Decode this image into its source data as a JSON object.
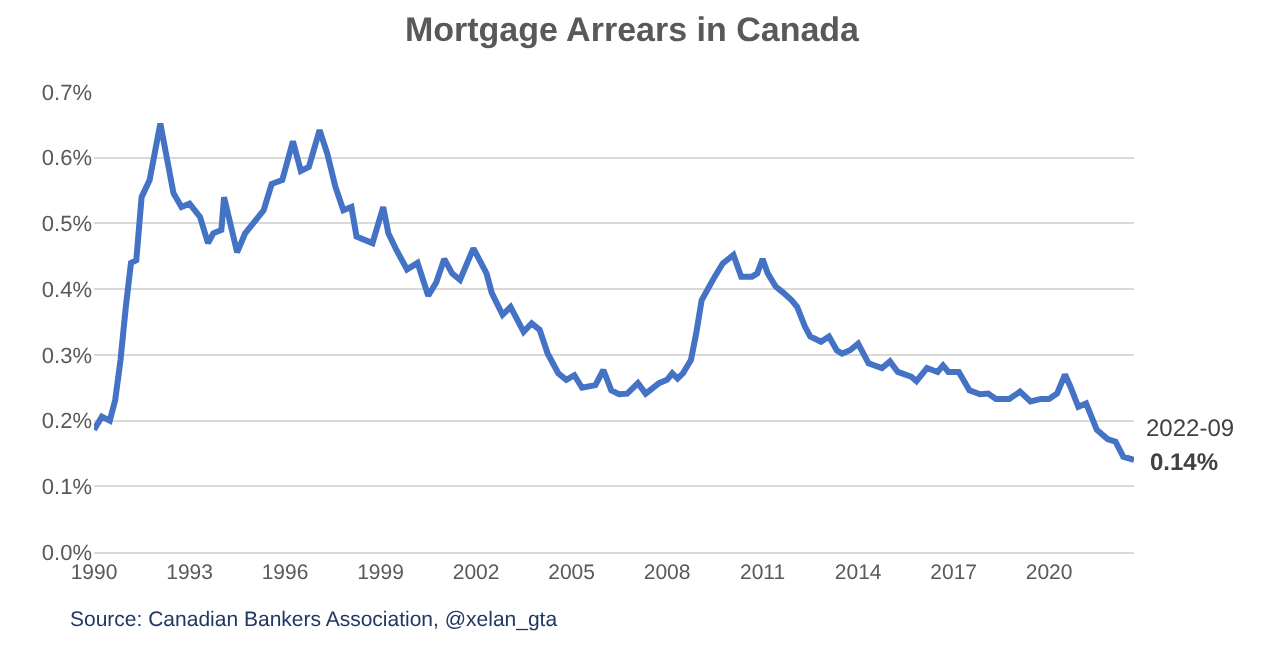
{
  "chart_data": {
    "type": "line",
    "title": "Mortgage Arrears in Canada",
    "x": [
      "1990-01",
      "1990-04",
      "1990-07",
      "1990-09",
      "1990-11",
      "1991-01",
      "1991-03",
      "1991-05",
      "1991-07",
      "1991-10",
      "1992-02",
      "1992-07",
      "1992-10",
      "1993-01",
      "1993-05",
      "1993-08",
      "1993-10",
      "1994-01",
      "1994-02",
      "1994-07",
      "1994-10",
      "1995-01",
      "1995-05",
      "1995-08",
      "1995-12",
      "1996-04",
      "1996-07",
      "1996-10",
      "1997-02",
      "1997-05",
      "1997-08",
      "1997-11",
      "1998-02",
      "1998-04",
      "1998-10",
      "1999-02",
      "1999-04",
      "1999-07",
      "1999-11",
      "2000-03",
      "2000-07",
      "2000-10",
      "2001-01",
      "2001-04",
      "2001-07",
      "2001-12",
      "2002-05",
      "2002-07",
      "2002-11",
      "2003-02",
      "2003-07",
      "2003-10",
      "2004-01",
      "2004-04",
      "2004-08",
      "2004-11",
      "2005-02",
      "2005-05",
      "2005-10",
      "2006-01",
      "2006-04",
      "2006-07",
      "2006-10",
      "2007-02",
      "2007-05",
      "2007-10",
      "2008-01",
      "2008-03",
      "2008-05",
      "2008-07",
      "2008-10",
      "2008-12",
      "2009-02",
      "2009-07",
      "2009-10",
      "2010-02",
      "2010-05",
      "2010-09",
      "2010-11",
      "2011-01",
      "2011-03",
      "2011-06",
      "2011-09",
      "2011-12",
      "2012-02",
      "2012-05",
      "2012-07",
      "2012-11",
      "2013-02",
      "2013-05",
      "2013-07",
      "2013-10",
      "2014-01",
      "2014-05",
      "2014-10",
      "2015-01",
      "2015-04",
      "2015-09",
      "2015-11",
      "2016-03",
      "2016-07",
      "2016-09",
      "2016-11",
      "2017-03",
      "2017-07",
      "2017-11",
      "2018-02",
      "2018-05",
      "2018-10",
      "2019-02",
      "2019-06",
      "2019-10",
      "2020-01",
      "2020-04",
      "2020-07",
      "2020-09",
      "2020-12",
      "2021-03",
      "2021-07",
      "2021-11",
      "2022-02",
      "2022-05",
      "2022-09"
    ],
    "series": [
      {
        "color": "#4472c4",
        "values": [
          0.186,
          0.206,
          0.2,
          0.231,
          0.292,
          0.373,
          0.44,
          0.444,
          0.54,
          0.566,
          0.652,
          0.546,
          0.525,
          0.53,
          0.51,
          0.47,
          0.485,
          0.49,
          0.54,
          0.456,
          0.485,
          0.5,
          0.52,
          0.56,
          0.566,
          0.625,
          0.58,
          0.586,
          0.642,
          0.606,
          0.556,
          0.52,
          0.525,
          0.48,
          0.47,
          0.525,
          0.485,
          0.46,
          0.43,
          0.44,
          0.39,
          0.41,
          0.446,
          0.424,
          0.414,
          0.462,
          0.424,
          0.394,
          0.361,
          0.373,
          0.335,
          0.348,
          0.338,
          0.302,
          0.272,
          0.262,
          0.269,
          0.25,
          0.254,
          0.277,
          0.246,
          0.24,
          0.241,
          0.257,
          0.241,
          0.257,
          0.262,
          0.272,
          0.264,
          0.272,
          0.292,
          0.333,
          0.383,
          0.419,
          0.439,
          0.452,
          0.419,
          0.419,
          0.424,
          0.446,
          0.424,
          0.404,
          0.394,
          0.383,
          0.373,
          0.343,
          0.328,
          0.32,
          0.328,
          0.307,
          0.302,
          0.307,
          0.317,
          0.287,
          0.28,
          0.29,
          0.274,
          0.267,
          0.26,
          0.28,
          0.274,
          0.284,
          0.274,
          0.274,
          0.246,
          0.24,
          0.241,
          0.233,
          0.233,
          0.244,
          0.229,
          0.233,
          0.233,
          0.241,
          0.27,
          0.252,
          0.221,
          0.226,
          0.186,
          0.172,
          0.168,
          0.145,
          0.14
        ]
      }
    ],
    "xlim": [
      "1990-01",
      "2022-09"
    ],
    "xticks": [
      "1990",
      "1993",
      "1996",
      "1999",
      "2002",
      "2005",
      "2008",
      "2011",
      "2014",
      "2017",
      "2020"
    ],
    "ylim": [
      0,
      0.7
    ],
    "yticks": [
      {
        "value": 0,
        "label": "0.0%"
      },
      {
        "value": 0.1,
        "label": "0.1%"
      },
      {
        "value": 0.2,
        "label": "0.2%"
      },
      {
        "value": 0.3,
        "label": "0.3%"
      },
      {
        "value": 0.4,
        "label": "0.4%"
      },
      {
        "value": 0.5,
        "label": "0.5%"
      },
      {
        "value": 0.6,
        "label": "0.6%"
      },
      {
        "value": 0.7,
        "label": "0.7%"
      }
    ],
    "grid": "y",
    "marker": "none",
    "line_style": "solid",
    "annotations": [
      {
        "text": "2022-09",
        "x": "2022-09",
        "y": 0.14
      },
      {
        "text": "0.14%",
        "x": "2022-09",
        "y": 0.14
      },
      "Source: Canadian Bankers Association, @xelan_gta"
    ]
  }
}
